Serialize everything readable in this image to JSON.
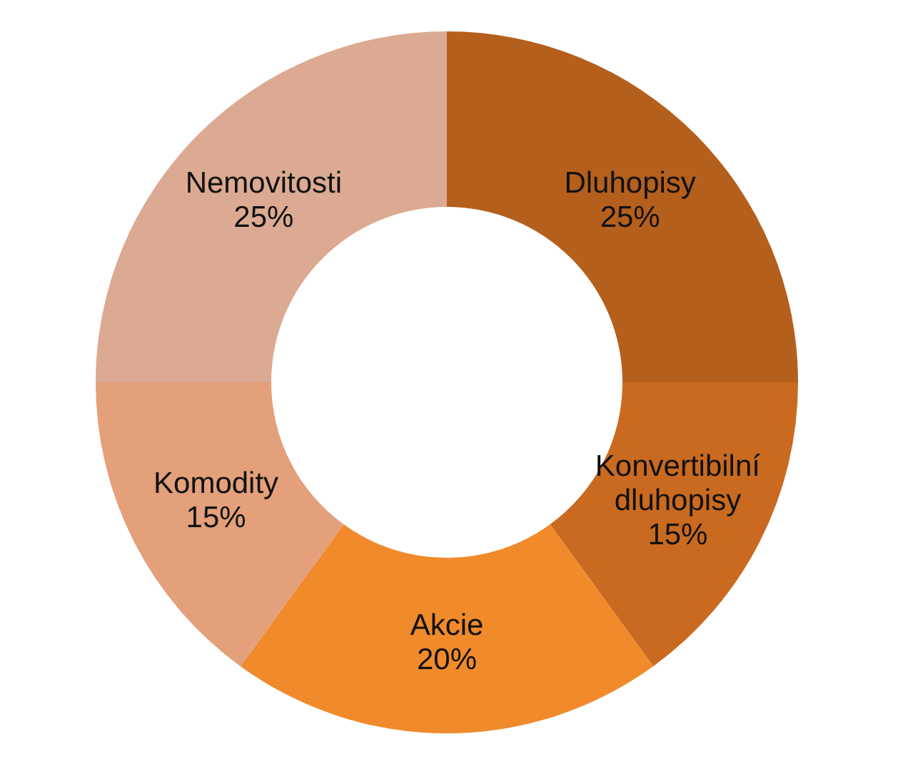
{
  "chart_data": {
    "type": "donut",
    "categories": [
      "Dluhopisy",
      "Konvertibilní dluhopisy",
      "Akcie",
      "Komodity",
      "Nemovitosti"
    ],
    "values": [
      25,
      15,
      20,
      15,
      25
    ],
    "colors": [
      "#b55f1d",
      "#c96a20",
      "#f08a2b",
      "#e3a07b",
      "#dcaa92"
    ],
    "value_labels": [
      "25%",
      "15%",
      "20%",
      "15%",
      "25%"
    ]
  }
}
